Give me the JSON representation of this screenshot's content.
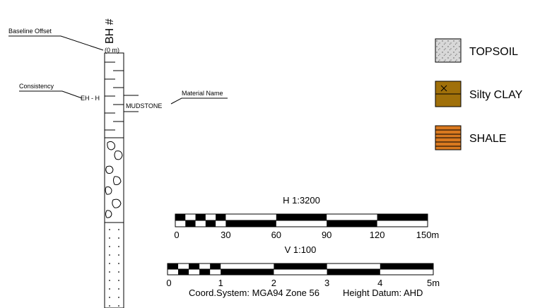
{
  "borehole": {
    "title": "BH #",
    "depth": "(0 m)",
    "baseline_offset": "Baseline Offset",
    "consistency": "Consistency",
    "consistency_value": "EH - H",
    "material": "MUDSTONE",
    "material_name": "Material Name"
  },
  "legend": [
    {
      "label": "TOPSOIL"
    },
    {
      "label": "Silty CLAY"
    },
    {
      "label": "SHALE"
    }
  ],
  "scales": [
    {
      "title": "H 1:3200",
      "ticks": [
        "0",
        "30",
        "60",
        "90",
        "120",
        "150m"
      ]
    },
    {
      "title": "V 1:100",
      "ticks": [
        "0",
        "1",
        "2",
        "3",
        "4",
        "5m"
      ]
    }
  ],
  "footer": {
    "coord_system": "Coord.System:  MGA94 Zone 56",
    "height_datum": "Height Datum:  AHD"
  }
}
